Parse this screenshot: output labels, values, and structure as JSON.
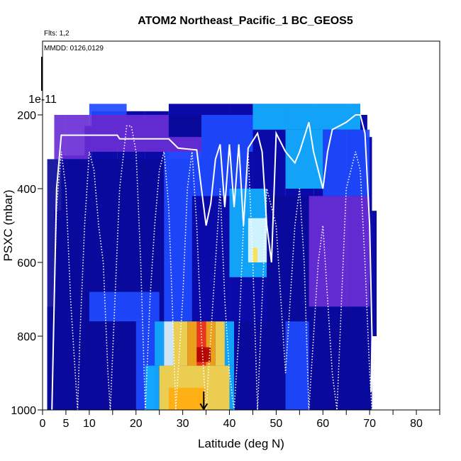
{
  "title": "ATOM2 Northeast_Pacific_1 BC_GEOS5",
  "flights_label": "Flts: 1,2",
  "dates_label": "MMDD: 0126,0129",
  "chart_data": {
    "type": "heatmap",
    "title": "ATOM2 Northeast_Pacific_1 BC_GEOS5",
    "xlabel": "Latitude (deg N)",
    "ylabel": "PSXC (mbar)",
    "xlim": [
      0,
      85
    ],
    "ylim": [
      1000,
      0
    ],
    "x_ticks": [
      0,
      5,
      10,
      20,
      30,
      40,
      50,
      60,
      70,
      80
    ],
    "y_ticks": [
      200,
      400,
      600,
      800,
      1000
    ],
    "y_extra_label": "1e-11",
    "colormap": [
      "#00008b",
      "#0000cd",
      "#1e3cff",
      "#00bfff",
      "#e0ffff",
      "#ffff66",
      "#ffa500",
      "#ff4500",
      "#b00000",
      "#7b2fd0"
    ],
    "curtain_columns": [
      {
        "lat_start": 1.0,
        "lat_end": 2.5,
        "top_mbar": 720,
        "bottom_mbar": 1000
      },
      {
        "lat_start": 2.5,
        "lat_end": 4.0,
        "top_mbar": 460,
        "bottom_mbar": 1000
      },
      {
        "lat_start": 4.0,
        "lat_end": 9.0,
        "top_mbar": 310,
        "bottom_mbar": 1000
      },
      {
        "lat_start": 9.0,
        "lat_end": 10.5,
        "top_mbar": 230,
        "bottom_mbar": 1000
      },
      {
        "lat_start": 10.5,
        "lat_end": 16.0,
        "top_mbar": 190,
        "bottom_mbar": 1000
      },
      {
        "lat_start": 16.0,
        "lat_end": 22.0,
        "top_mbar": 190,
        "bottom_mbar": 1000
      },
      {
        "lat_start": 22.0,
        "lat_end": 27.0,
        "top_mbar": 190,
        "bottom_mbar": 1000
      },
      {
        "lat_start": 27.0,
        "lat_end": 34.0,
        "top_mbar": 170,
        "bottom_mbar": 1000
      },
      {
        "lat_start": 34.0,
        "lat_end": 40.0,
        "top_mbar": 170,
        "bottom_mbar": 1000
      },
      {
        "lat_start": 40.0,
        "lat_end": 45.0,
        "top_mbar": 170,
        "bottom_mbar": 1000
      },
      {
        "lat_start": 45.0,
        "lat_end": 52.0,
        "top_mbar": 170,
        "bottom_mbar": 1000
      },
      {
        "lat_start": 52.0,
        "lat_end": 58.0,
        "top_mbar": 170,
        "bottom_mbar": 1000
      },
      {
        "lat_start": 58.0,
        "lat_end": 65.0,
        "top_mbar": 170,
        "bottom_mbar": 1000
      },
      {
        "lat_start": 65.0,
        "lat_end": 68.0,
        "top_mbar": 170,
        "bottom_mbar": 1000
      },
      {
        "lat_start": 68.0,
        "lat_end": 69.5,
        "top_mbar": 200,
        "bottom_mbar": 1000
      },
      {
        "lat_start": 69.5,
        "lat_end": 70.5,
        "top_mbar": 260,
        "bottom_mbar": 1000
      },
      {
        "lat_start": 70.5,
        "lat_end": 71.5,
        "top_mbar": 460,
        "bottom_mbar": 800
      }
    ],
    "heatmap_cells": [
      {
        "lat": [
          2.5,
          5
        ],
        "p": [
          200,
          320
        ],
        "value": "purple"
      },
      {
        "lat": [
          5,
          10
        ],
        "p": [
          200,
          320
        ],
        "value": "purple"
      },
      {
        "lat": [
          10,
          18
        ],
        "p": [
          170,
          200
        ],
        "value": "blue"
      },
      {
        "lat": [
          10,
          22
        ],
        "p": [
          200,
          300
        ],
        "value": "purple"
      },
      {
        "lat": [
          22,
          27
        ],
        "p": [
          200,
          300
        ],
        "value": "purple"
      },
      {
        "lat": [
          27,
          34
        ],
        "p": [
          200,
          260
        ],
        "value": "darkblue"
      },
      {
        "lat": [
          27,
          34
        ],
        "p": [
          260,
          320
        ],
        "value": "purple"
      },
      {
        "lat": [
          34,
          45
        ],
        "p": [
          200,
          300
        ],
        "value": "blue"
      },
      {
        "lat": [
          45,
          52
        ],
        "p": [
          170,
          240
        ],
        "value": "cyan"
      },
      {
        "lat": [
          52,
          68
        ],
        "p": [
          170,
          240
        ],
        "value": "cyan"
      },
      {
        "lat": [
          52,
          60
        ],
        "p": [
          240,
          400
        ],
        "value": "cyan"
      },
      {
        "lat": [
          60,
          70
        ],
        "p": [
          240,
          420
        ],
        "value": "blue"
      },
      {
        "lat": [
          57,
          70
        ],
        "p": [
          420,
          720
        ],
        "value": "purple"
      },
      {
        "lat": [
          1,
          15
        ],
        "p": [
          320,
          760
        ],
        "value": "darkblue"
      },
      {
        "lat": [
          15,
          26
        ],
        "p": [
          320,
          760
        ],
        "value": "darkblue"
      },
      {
        "lat": [
          26,
          32
        ],
        "p": [
          300,
          760
        ],
        "value": "blue"
      },
      {
        "lat": [
          32,
          44
        ],
        "p": [
          300,
          420
        ],
        "value": "blue"
      },
      {
        "lat": [
          40,
          48
        ],
        "p": [
          400,
          640
        ],
        "value": "cyan"
      },
      {
        "lat": [
          44,
          48
        ],
        "p": [
          480,
          600
        ],
        "value": "lightcyan"
      },
      {
        "lat": [
          45,
          46
        ],
        "p": [
          560,
          600
        ],
        "value": "yellow"
      },
      {
        "lat": [
          48,
          57
        ],
        "p": [
          420,
          760
        ],
        "value": "darkblue"
      },
      {
        "lat": [
          10,
          25
        ],
        "p": [
          680,
          760
        ],
        "value": "blue"
      },
      {
        "lat": [
          1,
          20
        ],
        "p": [
          760,
          1000
        ],
        "value": "darkblue"
      },
      {
        "lat": [
          20,
          24
        ],
        "p": [
          760,
          1000
        ],
        "value": "blue"
      },
      {
        "lat": [
          24,
          26
        ],
        "p": [
          760,
          880
        ],
        "value": "cyan"
      },
      {
        "lat": [
          26,
          28
        ],
        "p": [
          760,
          880
        ],
        "value": "lightcyan"
      },
      {
        "lat": [
          28,
          31
        ],
        "p": [
          760,
          880
        ],
        "value": "yellow"
      },
      {
        "lat": [
          31,
          33
        ],
        "p": [
          760,
          880
        ],
        "value": "orange"
      },
      {
        "lat": [
          33,
          35
        ],
        "p": [
          760,
          880
        ],
        "value": "red"
      },
      {
        "lat": [
          35,
          37
        ],
        "p": [
          760,
          880
        ],
        "value": "orange"
      },
      {
        "lat": [
          37,
          39
        ],
        "p": [
          760,
          880
        ],
        "value": "yellow"
      },
      {
        "lat": [
          39,
          41
        ],
        "p": [
          760,
          880
        ],
        "value": "cyan"
      },
      {
        "lat": [
          41,
          52
        ],
        "p": [
          760,
          1000
        ],
        "value": "darkblue"
      },
      {
        "lat": [
          52,
          57
        ],
        "p": [
          760,
          1000
        ],
        "value": "blue"
      },
      {
        "lat": [
          57,
          70
        ],
        "p": [
          720,
          1000
        ],
        "value": "darkblue"
      },
      {
        "lat": [
          33,
          36
        ],
        "p": [
          830,
          870
        ],
        "value": "darkred"
      },
      {
        "lat": [
          22,
          25
        ],
        "p": [
          880,
          1000
        ],
        "value": "cyan"
      },
      {
        "lat": [
          25,
          35
        ],
        "p": [
          880,
          1000
        ],
        "value": "yellow"
      },
      {
        "lat": [
          27,
          35
        ],
        "p": [
          940,
          1000
        ],
        "value": "orange"
      },
      {
        "lat": [
          35,
          40
        ],
        "p": [
          880,
          1000
        ],
        "value": "yellow"
      },
      {
        "lat": [
          40,
          41
        ],
        "p": [
          880,
          1000
        ],
        "value": "cyan"
      }
    ],
    "flight_track_white": [
      [
        2,
        1000
      ],
      [
        2.5,
        700
      ],
      [
        3,
        400
      ],
      [
        4,
        255
      ],
      [
        7,
        255
      ],
      [
        10,
        255
      ],
      [
        16,
        255
      ],
      [
        16.5,
        265
      ],
      [
        22,
        265
      ],
      [
        27,
        265
      ],
      [
        29,
        290
      ],
      [
        33,
        295
      ],
      [
        34,
        400
      ],
      [
        35,
        500
      ],
      [
        36,
        440
      ],
      [
        37,
        320
      ],
      [
        38,
        280
      ],
      [
        39,
        450
      ],
      [
        40,
        280
      ],
      [
        41,
        450
      ],
      [
        42,
        280
      ],
      [
        43,
        500
      ],
      [
        44,
        290
      ],
      [
        46,
        250
      ],
      [
        47,
        300
      ],
      [
        48,
        500
      ],
      [
        49,
        600
      ],
      [
        50,
        250
      ],
      [
        52,
        300
      ],
      [
        54,
        330
      ],
      [
        55,
        300
      ],
      [
        57,
        220
      ],
      [
        58,
        300
      ],
      [
        60,
        400
      ],
      [
        61,
        300
      ],
      [
        62,
        240
      ],
      [
        65,
        220
      ],
      [
        67,
        200
      ],
      [
        68,
        200
      ],
      [
        69,
        250
      ],
      [
        70,
        500
      ],
      [
        70.5,
        800
      ],
      [
        70.3,
        950
      ]
    ],
    "flight_track_dotted": [
      [
        2,
        1000
      ],
      [
        2.5,
        700
      ],
      [
        3,
        450
      ],
      [
        4,
        300
      ],
      [
        5,
        400
      ],
      [
        6,
        700
      ],
      [
        7,
        900
      ],
      [
        7.5,
        1000
      ],
      [
        8,
        800
      ],
      [
        9,
        500
      ],
      [
        10,
        300
      ],
      [
        11,
        350
      ],
      [
        12,
        500
      ],
      [
        13,
        600
      ],
      [
        14,
        900
      ],
      [
        14.5,
        1000
      ],
      [
        15.5,
        700
      ],
      [
        16.5,
        400
      ],
      [
        18,
        230
      ],
      [
        19,
        230
      ],
      [
        20,
        300
      ],
      [
        21,
        600
      ],
      [
        22,
        1000
      ],
      [
        23,
        700
      ],
      [
        24,
        500
      ],
      [
        25,
        350
      ],
      [
        26,
        300
      ],
      [
        27,
        450
      ],
      [
        28,
        800
      ],
      [
        28.5,
        1000
      ],
      [
        29,
        900
      ],
      [
        30,
        700
      ],
      [
        31,
        400
      ],
      [
        32,
        300
      ],
      [
        33,
        500
      ],
      [
        34,
        800
      ],
      [
        35,
        1000
      ],
      [
        36,
        800
      ],
      [
        37,
        600
      ],
      [
        38,
        400
      ],
      [
        39,
        700
      ],
      [
        40,
        900
      ],
      [
        41,
        1000
      ],
      [
        42,
        800
      ],
      [
        43,
        500
      ],
      [
        44,
        300
      ],
      [
        45,
        600
      ],
      [
        46,
        1000
      ],
      [
        47,
        700
      ],
      [
        48,
        400
      ],
      [
        50,
        500
      ],
      [
        51,
        700
      ],
      [
        52,
        900
      ],
      [
        53,
        700
      ],
      [
        54,
        500
      ],
      [
        55,
        400
      ],
      [
        56,
        600
      ],
      [
        57,
        1000
      ],
      [
        58,
        800
      ],
      [
        59,
        600
      ],
      [
        60,
        500
      ],
      [
        61,
        700
      ],
      [
        62,
        900
      ],
      [
        63,
        1000
      ],
      [
        64,
        700
      ],
      [
        65,
        400
      ],
      [
        67,
        300
      ],
      [
        68,
        350
      ],
      [
        69,
        600
      ],
      [
        70,
        900
      ],
      [
        70.5,
        1000
      ]
    ],
    "arrow_marker": {
      "lat": 34.5,
      "p_from": 950,
      "p_to": 1000
    }
  }
}
